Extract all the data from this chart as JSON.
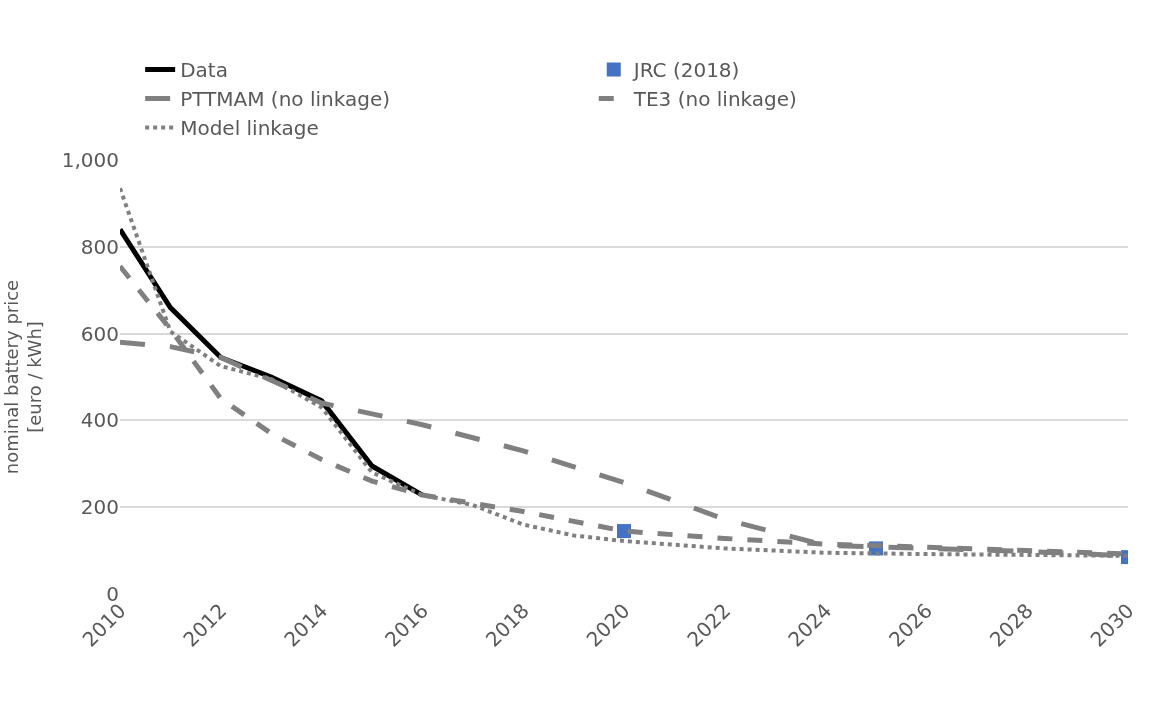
{
  "chart_data": {
    "type": "line",
    "ylabel": "nominal battery price\n[euro / kWh]",
    "xlim": [
      2010,
      2030
    ],
    "xticks": [
      2010,
      2012,
      2014,
      2016,
      2018,
      2020,
      2022,
      2024,
      2026,
      2028,
      2030
    ],
    "ylim": [
      0,
      1000
    ],
    "yticks": [
      0,
      200,
      400,
      600,
      800,
      {
        "value": 1000,
        "label": "1,000"
      }
    ],
    "grid": "y",
    "legend": "top",
    "series": [
      {
        "name": "Data",
        "color": "#000000",
        "line_style": "solid",
        "x": [
          2010,
          2011,
          2012,
          2013,
          2014,
          2015,
          2016
        ],
        "values": [
          840,
          660,
          545,
          500,
          445,
          295,
          228
        ]
      },
      {
        "name": "JRC (2018)",
        "type": "scatter",
        "marker": "square",
        "color": "#4472c4",
        "x": [
          2020,
          2025,
          2030
        ],
        "values": [
          145,
          105,
          85
        ]
      },
      {
        "name": "PTTMAM (no linkage)",
        "color": "#808080",
        "line_style": "longdash",
        "x": [
          2010,
          2011,
          2012,
          2014,
          2016,
          2018,
          2020,
          2022,
          2024,
          2026,
          2028,
          2030
        ],
        "values": [
          580,
          570,
          545,
          440,
          390,
          330,
          257,
          172,
          112,
          105,
          98,
          88
        ]
      },
      {
        "name": "TE3 (no linkage)",
        "color": "#808080",
        "line_style": "dashed",
        "x": [
          2010,
          2011,
          2012,
          2013,
          2014,
          2015,
          2016,
          2018,
          2020,
          2022,
          2024,
          2026,
          2028,
          2030
        ],
        "values": [
          755,
          610,
          450,
          370,
          310,
          260,
          228,
          190,
          145,
          128,
          115,
          108,
          100,
          92
        ]
      },
      {
        "name": "Model linkage",
        "color": "#808080",
        "line_style": "dotted",
        "x": [
          2010,
          2011,
          2012,
          2013,
          2014,
          2015,
          2016,
          2017,
          2018,
          2019,
          2020,
          2022,
          2024,
          2026,
          2028,
          2030
        ],
        "values": [
          935,
          605,
          525,
          495,
          430,
          280,
          228,
          205,
          160,
          135,
          122,
          105,
          95,
          92,
          90,
          88
        ]
      }
    ]
  }
}
